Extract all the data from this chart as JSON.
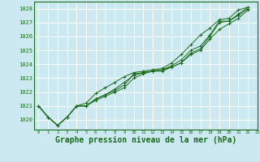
{
  "background_color": "#cce8f0",
  "grid_color": "#ffffff",
  "line_color": "#1a6b1a",
  "xlabel": "Graphe pression niveau de la mer (hPa)",
  "xlabel_fontsize": 7,
  "ylim": [
    1019.3,
    1028.5
  ],
  "xlim": [
    -0.5,
    23
  ],
  "yticks": [
    1020,
    1021,
    1022,
    1023,
    1024,
    1025,
    1026,
    1027,
    1028
  ],
  "xticks": [
    0,
    1,
    2,
    3,
    4,
    5,
    6,
    7,
    8,
    9,
    10,
    11,
    12,
    13,
    14,
    15,
    16,
    17,
    18,
    19,
    20,
    21,
    22,
    23
  ],
  "series1": [
    1021.0,
    1020.2,
    1019.6,
    1020.2,
    1021.0,
    1021.0,
    1021.5,
    1021.8,
    1022.1,
    1022.5,
    1023.3,
    1023.4,
    1023.5,
    1023.6,
    1023.8,
    1024.1,
    1024.8,
    1025.1,
    1026.0,
    1027.0,
    1027.1,
    1027.5,
    1028.0
  ],
  "series2": [
    1021.0,
    1020.2,
    1019.6,
    1020.2,
    1021.0,
    1021.2,
    1021.9,
    1022.3,
    1022.7,
    1023.1,
    1023.4,
    1023.5,
    1023.6,
    1023.7,
    1024.1,
    1024.7,
    1025.4,
    1026.1,
    1026.6,
    1027.2,
    1027.3,
    1027.9,
    1028.1
  ],
  "series3": [
    1021.0,
    1020.2,
    1019.6,
    1020.2,
    1021.0,
    1021.0,
    1021.5,
    1021.8,
    1022.2,
    1022.7,
    1023.2,
    1023.4,
    1023.5,
    1023.6,
    1023.9,
    1024.3,
    1025.0,
    1025.3,
    1026.1,
    1027.1,
    1027.1,
    1027.6,
    1028.1
  ],
  "series_diverge": [
    1021.0,
    1020.2,
    1019.6,
    1020.2,
    1021.0,
    1021.0,
    1021.4,
    1021.7,
    1022.0,
    1022.3,
    1023.0,
    1023.3,
    1023.5,
    1023.5,
    1023.8,
    1024.1,
    1024.7,
    1025.0,
    1025.8,
    1026.5,
    1026.9,
    1027.3,
    1027.9
  ]
}
